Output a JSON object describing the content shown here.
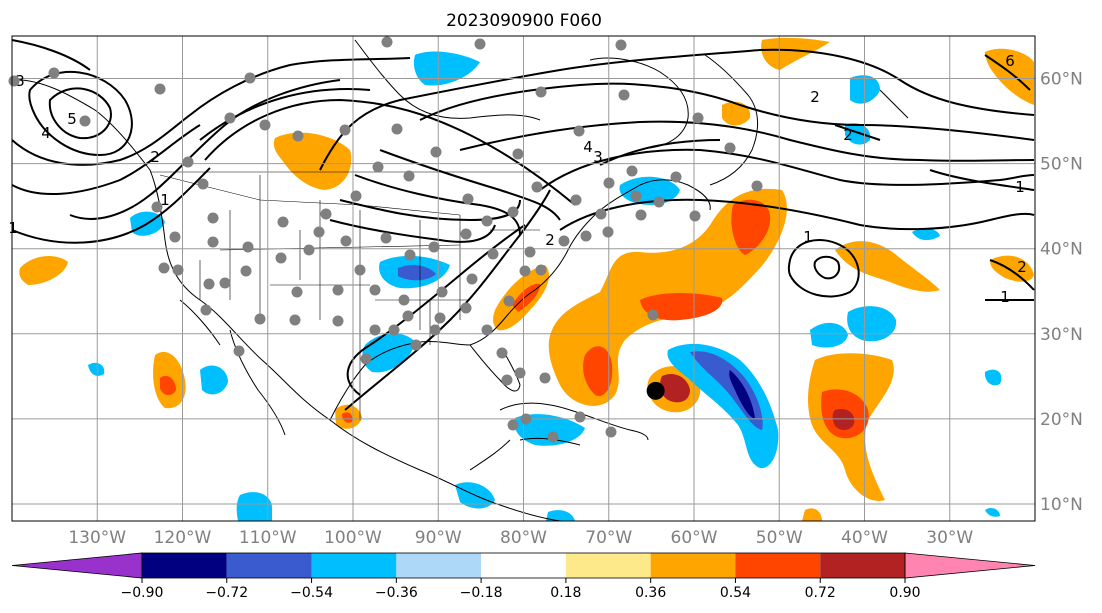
{
  "title": "2023090900 F060",
  "map": {
    "lon_labels": [
      "130°W",
      "120°W",
      "110°W",
      "100°W",
      "90°W",
      "80°W",
      "70°W",
      "60°W",
      "50°W",
      "40°W",
      "30°W"
    ],
    "lon_values": [
      -130,
      -120,
      -110,
      -100,
      -90,
      -80,
      -70,
      -60,
      -50,
      -40,
      -30
    ],
    "lat_labels": [
      "10°N",
      "20°N",
      "30°N",
      "40°N",
      "50°N",
      "60°N"
    ],
    "lat_values": [
      10,
      20,
      30,
      40,
      50,
      60
    ],
    "lon_range": [
      -140,
      -20
    ],
    "lat_range": [
      8,
      65
    ],
    "gridlines": true,
    "contour_labels": [
      "1",
      "1",
      "1",
      "1",
      "2",
      "2",
      "2",
      "2",
      "3",
      "3",
      "4",
      "4",
      "5",
      "6",
      "1",
      "2"
    ],
    "storm_marker": {
      "lon": -64.5,
      "lat": 23.3,
      "color": "#000000"
    },
    "observation_dot_color": "#808080",
    "contour_color": "#000000"
  },
  "colorbar": {
    "tick_labels": [
      "−0.90",
      "−0.72",
      "−0.54",
      "−0.36",
      "−0.18",
      "0.18",
      "0.36",
      "0.54",
      "0.72",
      "0.90"
    ],
    "levels": [
      -0.9,
      -0.72,
      -0.54,
      -0.36,
      -0.18,
      0.18,
      0.36,
      0.54,
      0.72,
      0.9
    ],
    "colors": [
      "#9932cc",
      "#000080",
      "#3a5bd0",
      "#00bfff",
      "#add8f8",
      "#ffffff",
      "#fde98a",
      "#ffa500",
      "#ff4500",
      "#b22222",
      "#ff85b0"
    ],
    "extend": "both"
  }
}
